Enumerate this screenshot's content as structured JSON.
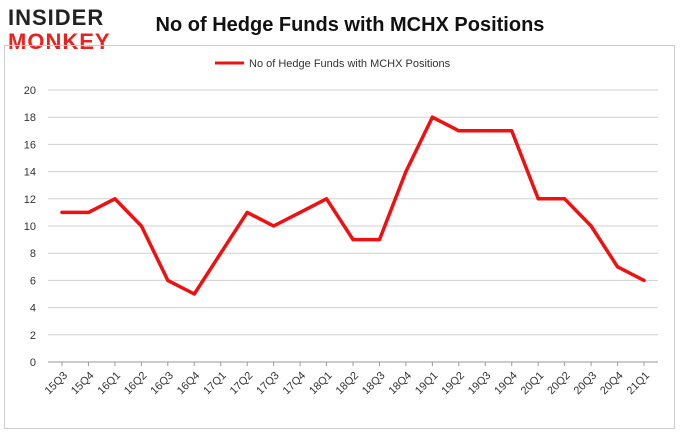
{
  "logo": {
    "line1": "INSIDER",
    "line2": "MONKEY"
  },
  "colors": {
    "series": "#ee1111",
    "grid": "#d0d0d0",
    "frame": "#cccccc",
    "text": "#333333",
    "brand_red": "#e8231f"
  },
  "chart_data": {
    "type": "line",
    "title": "No of Hedge Funds with MCHX Positions",
    "xlabel": "",
    "ylabel": "",
    "categories": [
      "15Q3",
      "15Q4",
      "16Q1",
      "16Q2",
      "16Q3",
      "16Q4",
      "17Q1",
      "17Q2",
      "17Q3",
      "17Q4",
      "18Q1",
      "18Q2",
      "18Q3",
      "18Q4",
      "19Q1",
      "19Q2",
      "19Q3",
      "19Q4",
      "20Q1",
      "20Q2",
      "20Q3",
      "20Q4",
      "21Q1"
    ],
    "series": [
      {
        "name": "No of Hedge Funds with MCHX Positions",
        "values": [
          11,
          11,
          12,
          10,
          6,
          5,
          8,
          11,
          10,
          11,
          12,
          9,
          9,
          14,
          18,
          17,
          17,
          17,
          12,
          12,
          10,
          7,
          6
        ]
      }
    ],
    "ylim": [
      0,
      20
    ],
    "yticks": [
      0,
      2,
      4,
      6,
      8,
      10,
      12,
      14,
      16,
      18,
      20
    ],
    "grid": true,
    "legend": "top-center"
  }
}
